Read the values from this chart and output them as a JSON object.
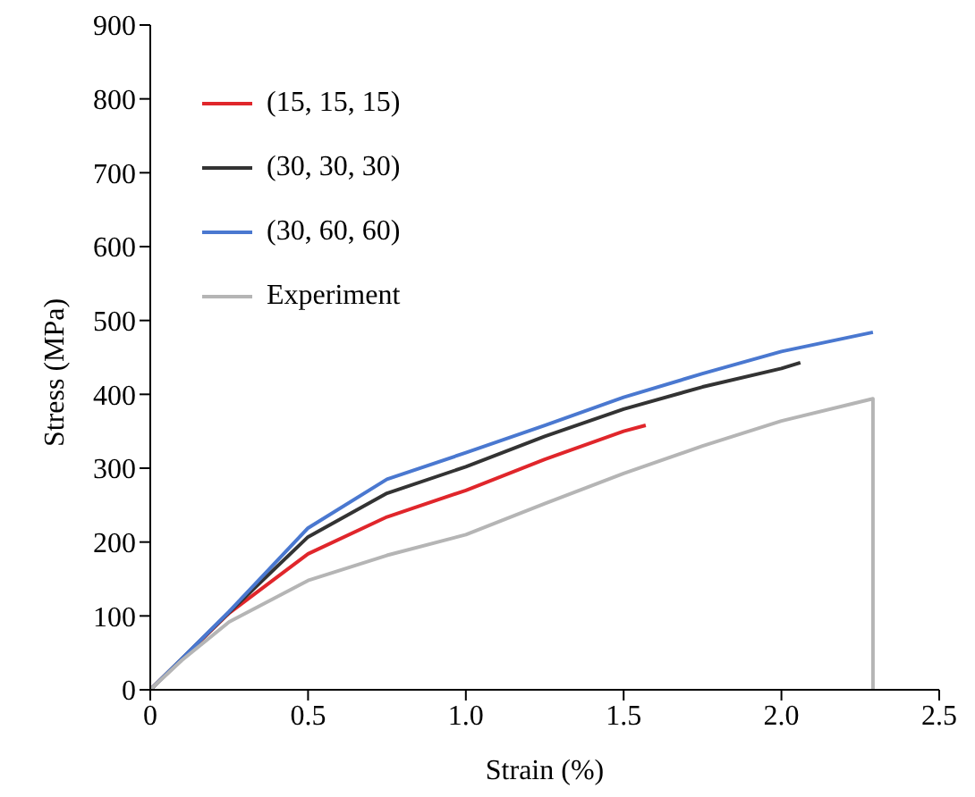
{
  "chart_data": {
    "type": "line",
    "xlabel": "Strain (%)",
    "ylabel": "Stress (MPa)",
    "xlim": [
      0,
      2.5
    ],
    "ylim": [
      0,
      900
    ],
    "xticks": [
      {
        "value": 0,
        "label": "0"
      },
      {
        "value": 0.5,
        "label": "0.5"
      },
      {
        "value": 1,
        "label": "1.0"
      },
      {
        "value": 1.5,
        "label": "1.5"
      },
      {
        "value": 2,
        "label": "2.0"
      },
      {
        "value": 2.5,
        "label": "2.5"
      }
    ],
    "yticks": [
      {
        "value": 0,
        "label": "0"
      },
      100,
      200,
      300,
      400,
      500,
      600,
      700,
      800,
      900
    ],
    "grid": false,
    "legend": "top left",
    "marker": "none",
    "line_style": "solid",
    "series": [
      {
        "name": "(15, 15, 15)",
        "color": "#e0262b",
        "x": [
          0,
          0.25,
          0.5,
          0.75,
          1.0,
          1.25,
          1.5,
          1.57
        ],
        "values": [
          0,
          104,
          184,
          234,
          270,
          312,
          350,
          358
        ]
      },
      {
        "name": "(30, 30, 30)",
        "color": "#333333",
        "x": [
          0,
          0.25,
          0.5,
          0.75,
          1.0,
          1.25,
          1.5,
          1.75,
          2.0,
          2.06
        ],
        "values": [
          0,
          105,
          207,
          266,
          302,
          343,
          380,
          410,
          435,
          443
        ]
      },
      {
        "name": "(30, 60, 60)",
        "color": "#4a78d0",
        "x": [
          0,
          0.1,
          0.25,
          0.5,
          0.75,
          1.0,
          1.25,
          1.5,
          1.75,
          2.0,
          2.29
        ],
        "values": [
          0,
          42,
          106,
          219,
          285,
          321,
          358,
          396,
          428,
          458,
          484
        ]
      },
      {
        "name": "Experiment",
        "color": "#b5b5b5",
        "x": [
          0,
          0.1,
          0.25,
          0.5,
          0.75,
          1.0,
          1.25,
          1.5,
          1.75,
          2.0,
          2.29,
          2.29
        ],
        "values": [
          0,
          40,
          92,
          148,
          182,
          210,
          252,
          293,
          330,
          364,
          394,
          0
        ]
      }
    ]
  }
}
